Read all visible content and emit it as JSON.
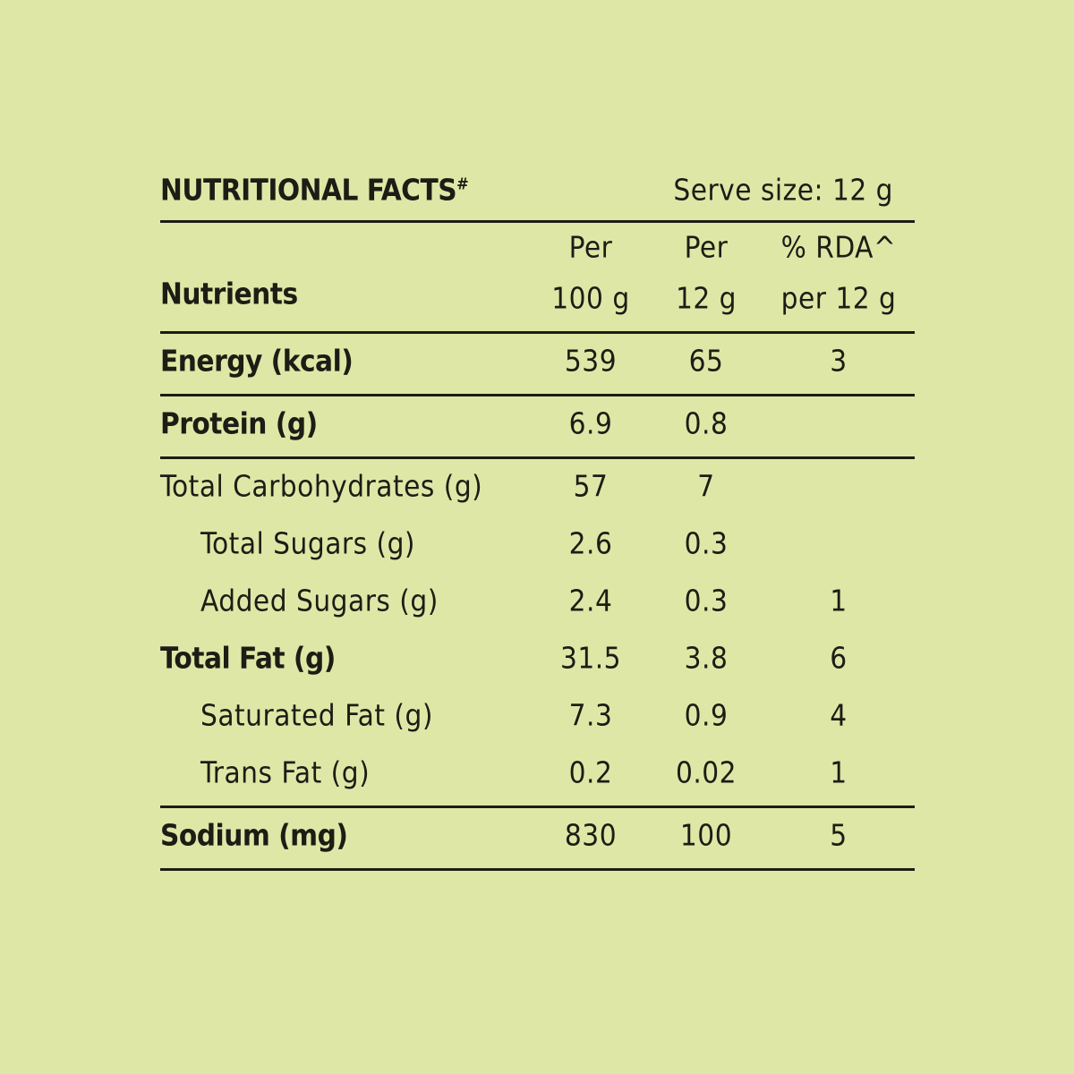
{
  "header": {
    "title": "NUTRITIONAL FACTS",
    "title_mark": "#",
    "serve_size": "Serve size: 12 g"
  },
  "table": {
    "columns": [
      [
        "Nutrients"
      ],
      [
        "Per",
        "100 g"
      ],
      [
        "Per",
        "12 g"
      ],
      [
        "% RDA^",
        "per 12 g"
      ]
    ],
    "sections": [
      [
        {
          "name": "Energy (kcal)",
          "bold": true,
          "indent": false,
          "cells": [
            539,
            65,
            3
          ]
        }
      ],
      [
        {
          "name": "Protein (g)",
          "bold": true,
          "indent": false,
          "cells": [
            6.9,
            0.8,
            null
          ]
        }
      ],
      [
        {
          "name": "Total Carbohydrates (g)",
          "bold": false,
          "indent": false,
          "cells": [
            57,
            7,
            null
          ]
        },
        {
          "name": "Total Sugars (g)",
          "bold": false,
          "indent": true,
          "cells": [
            2.6,
            0.3,
            null
          ]
        },
        {
          "name": "Added Sugars (g)",
          "bold": false,
          "indent": true,
          "cells": [
            2.4,
            0.3,
            1
          ]
        },
        {
          "name": "Total Fat (g)",
          "bold": true,
          "indent": false,
          "cells": [
            31.5,
            3.8,
            6
          ]
        },
        {
          "name": "Saturated Fat (g)",
          "bold": false,
          "indent": true,
          "cells": [
            7.3,
            0.9,
            4
          ]
        },
        {
          "name": "Trans Fat (g)",
          "bold": false,
          "indent": true,
          "cells": [
            0.2,
            0.02,
            1
          ]
        }
      ],
      [
        {
          "name": "Sodium (mg)",
          "bold": true,
          "indent": false,
          "cells": [
            830,
            100,
            5
          ]
        }
      ]
    ]
  }
}
